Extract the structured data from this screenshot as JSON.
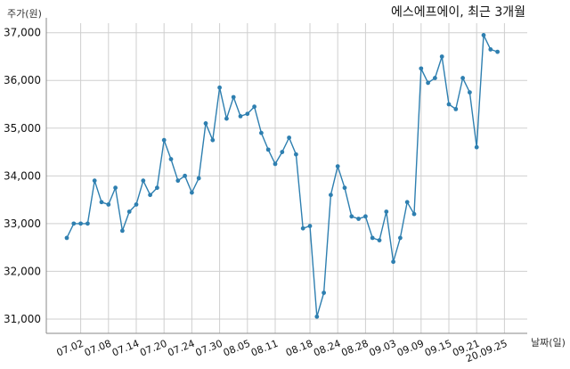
{
  "chart_data": {
    "type": "line",
    "title": "에스에프에이, 최근 3개월",
    "ylabel": "주가(원)",
    "xlabel": "날짜(일)",
    "ylim": [
      30700,
      37200
    ],
    "yticks": [
      31000,
      32000,
      33000,
      34000,
      35000,
      36000,
      37000
    ],
    "ytick_labels": [
      "31,000",
      "32,000",
      "33,000",
      "34,000",
      "35,000",
      "36,000",
      "37,000"
    ],
    "xtick_labels": [
      "07.02",
      "07.08",
      "07.14",
      "07.20",
      "07.24",
      "07.30",
      "08.05",
      "08.11",
      "08.18",
      "08.24",
      "08.28",
      "09.03",
      "09.09",
      "09.15",
      "09.21",
      "20.09.25"
    ],
    "xtick_index": [
      2,
      6,
      10,
      14,
      18,
      22,
      26,
      30,
      35,
      39,
      43,
      47,
      51,
      55,
      59,
      63
    ],
    "grid": true,
    "color": "#2e7fb0",
    "series": [
      {
        "name": "",
        "values": [
          32700,
          33000,
          33000,
          33000,
          33900,
          33450,
          33400,
          33750,
          32850,
          33250,
          33400,
          33900,
          33600,
          33750,
          34750,
          34350,
          33900,
          34000,
          33650,
          33950,
          35100,
          34750,
          35850,
          35200,
          35650,
          35250,
          35300,
          35450,
          34900,
          34550,
          34250,
          34500,
          34800,
          34450,
          32900,
          32950,
          31050,
          31550,
          33600,
          34200,
          33750,
          33150,
          33100,
          33150,
          32700,
          32650,
          33250,
          32200,
          32700,
          33450,
          33200,
          36250,
          35950,
          36050,
          36500,
          35500,
          35400,
          36050,
          35750,
          34600,
          36950,
          36650,
          36600
        ]
      }
    ]
  }
}
